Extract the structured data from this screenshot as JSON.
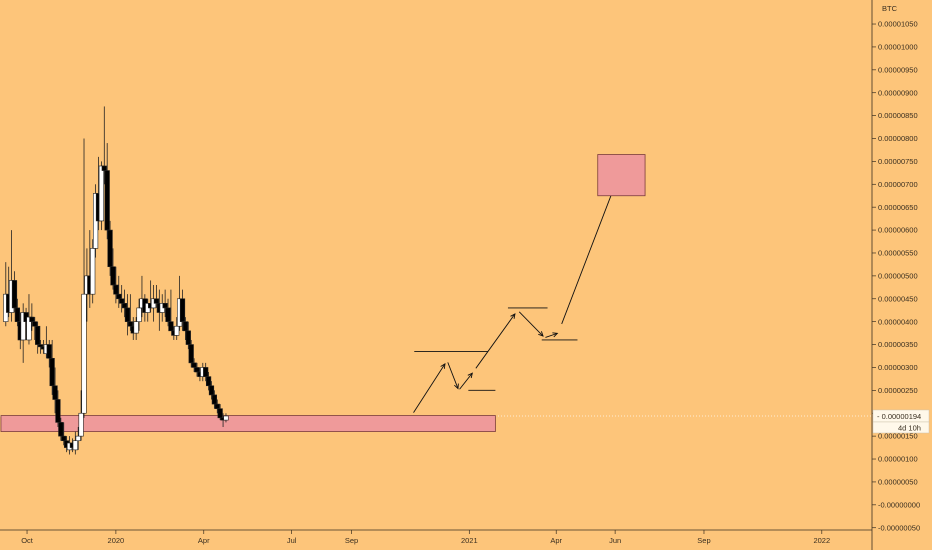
{
  "chart_data": {
    "type": "candlestick",
    "currency_label": "BTC",
    "ylim": [
      -5.5e-07,
      1.085e-05
    ],
    "y_ticks": [
      "0.00001050",
      "0.00001000",
      "0.00000950",
      "0.00000900",
      "0.00000850",
      "0.00000800",
      "0.00000750",
      "0.00000700",
      "0.00000650",
      "0.00000600",
      "0.00000550",
      "0.00000500",
      "0.00000450",
      "0.00000400",
      "0.00000350",
      "0.00000300",
      "0.00000250",
      "0.00000200",
      "0.00000150",
      "0.00000100",
      "0.00000050",
      "-0.00000000",
      "-0.00000050"
    ],
    "x_labels": [
      {
        "label": "Oct",
        "date": "2019-10-01"
      },
      {
        "label": "2020",
        "date": "2020-01-01"
      },
      {
        "label": "Apr",
        "date": "2020-04-01"
      },
      {
        "label": "Jul",
        "date": "2020-07-01"
      },
      {
        "label": "Sep",
        "date": "2020-09-01"
      },
      {
        "label": "2021",
        "date": "2021-01-01"
      },
      {
        "label": "Apr",
        "date": "2021-04-01"
      },
      {
        "label": "Jun",
        "date": "2021-06-01"
      },
      {
        "label": "Sep",
        "date": "2021-09-01"
      },
      {
        "label": "2022",
        "date": "2022-01-01"
      }
    ],
    "xlim": [
      "2019-09-03",
      "2022-02-22"
    ],
    "last_price": {
      "label": "0.00000194",
      "value": 1.94e-06,
      "countdown": "4d 10h"
    },
    "candles": [
      {
        "date": "2019-09-09",
        "o": 4e-06,
        "h": 5.3e-06,
        "l": 3.9e-06,
        "c": 4.6e-06
      },
      {
        "date": "2019-09-12",
        "o": 4.6e-06,
        "h": 5.2e-06,
        "l": 4.1e-06,
        "c": 4.2e-06
      },
      {
        "date": "2019-09-15",
        "o": 4.2e-06,
        "h": 6e-06,
        "l": 4e-06,
        "c": 4.9e-06
      },
      {
        "date": "2019-09-18",
        "o": 4.9e-06,
        "h": 5.1e-06,
        "l": 4.2e-06,
        "c": 4.3e-06
      },
      {
        "date": "2019-09-21",
        "o": 4.3e-06,
        "h": 4.5e-06,
        "l": 3.9e-06,
        "c": 4e-06
      },
      {
        "date": "2019-09-24",
        "o": 4e-06,
        "h": 4.2e-06,
        "l": 3.4e-06,
        "c": 3.6e-06
      },
      {
        "date": "2019-09-27",
        "o": 3.6e-06,
        "h": 4.4e-06,
        "l": 3.1e-06,
        "c": 4.2e-06
      },
      {
        "date": "2019-09-30",
        "o": 4.2e-06,
        "h": 4.3e-06,
        "l": 3.6e-06,
        "c": 4e-06
      },
      {
        "date": "2019-10-03",
        "o": 3.6e-06,
        "h": 4.6e-06,
        "l": 3.5e-06,
        "c": 4.1e-06
      },
      {
        "date": "2019-10-06",
        "o": 4.1e-06,
        "h": 4.4e-06,
        "l": 3.8e-06,
        "c": 4e-06
      },
      {
        "date": "2019-10-09",
        "o": 4e-06,
        "h": 4.1e-06,
        "l": 3.6e-06,
        "c": 3.9e-06
      },
      {
        "date": "2019-10-12",
        "o": 3.9e-06,
        "h": 4e-06,
        "l": 3.3e-06,
        "c": 3.5e-06
      },
      {
        "date": "2019-10-15",
        "o": 3.5e-06,
        "h": 3.6e-06,
        "l": 3.3e-06,
        "c": 3.45e-06
      },
      {
        "date": "2019-10-18",
        "o": 3.45e-06,
        "h": 3.6e-06,
        "l": 3.3e-06,
        "c": 3.4e-06
      },
      {
        "date": "2019-10-21",
        "o": 3.3e-06,
        "h": 3.9e-06,
        "l": 3.2e-06,
        "c": 3.5e-06
      },
      {
        "date": "2019-10-24",
        "o": 3.5e-06,
        "h": 3.6e-06,
        "l": 3e-06,
        "c": 3.2e-06
      },
      {
        "date": "2019-10-27",
        "o": 3.2e-06,
        "h": 3.6e-06,
        "l": 2.4e-06,
        "c": 2.6e-06
      },
      {
        "date": "2019-10-30",
        "o": 2.6e-06,
        "h": 3e-06,
        "l": 2e-06,
        "c": 2.3e-06
      },
      {
        "date": "2019-11-02",
        "o": 2.3e-06,
        "h": 2.5e-06,
        "l": 1.7e-06,
        "c": 1.8e-06
      },
      {
        "date": "2019-11-05",
        "o": 1.8e-06,
        "h": 1.9e-06,
        "l": 1.4e-06,
        "c": 1.5e-06
      },
      {
        "date": "2019-11-08",
        "o": 1.5e-06,
        "h": 1.8e-06,
        "l": 1.3e-06,
        "c": 1.4e-06
      },
      {
        "date": "2019-11-11",
        "o": 1.4e-06,
        "h": 1.5e-06,
        "l": 1.15e-06,
        "c": 1.25e-06
      },
      {
        "date": "2019-11-14",
        "o": 1.2e-06,
        "h": 1.5e-06,
        "l": 1.1e-06,
        "c": 1.35e-06
      },
      {
        "date": "2019-11-17",
        "o": 1.35e-06,
        "h": 1.45e-06,
        "l": 1.15e-06,
        "c": 1.25e-06
      },
      {
        "date": "2019-11-20",
        "o": 1.2e-06,
        "h": 1.6e-06,
        "l": 1.1e-06,
        "c": 1.4e-06
      },
      {
        "date": "2019-11-23",
        "o": 1.4e-06,
        "h": 1.7e-06,
        "l": 1.2e-06,
        "c": 1.5e-06
      },
      {
        "date": "2019-11-26",
        "o": 1.5e-06,
        "h": 2.5e-06,
        "l": 1.4e-06,
        "c": 2e-06
      },
      {
        "date": "2019-11-29",
        "o": 2e-06,
        "h": 8e-06,
        "l": 1.9e-06,
        "c": 4.6e-06
      },
      {
        "date": "2019-12-02",
        "o": 4.6e-06,
        "h": 5.6e-06,
        "l": 4e-06,
        "c": 5e-06
      },
      {
        "date": "2019-12-05",
        "o": 5e-06,
        "h": 6e-06,
        "l": 4.3e-06,
        "c": 4.6e-06
      },
      {
        "date": "2019-12-08",
        "o": 4.6e-06,
        "h": 5.8e-06,
        "l": 4.4e-06,
        "c": 5.6e-06
      },
      {
        "date": "2019-12-11",
        "o": 5.6e-06,
        "h": 7e-06,
        "l": 5.4e-06,
        "c": 6.8e-06
      },
      {
        "date": "2019-12-14",
        "o": 6.8e-06,
        "h": 7.6e-06,
        "l": 6e-06,
        "c": 6.2e-06
      },
      {
        "date": "2019-12-17",
        "o": 6.2e-06,
        "h": 7.5e-06,
        "l": 6e-06,
        "c": 7.4e-06
      },
      {
        "date": "2019-12-20",
        "o": 7.4e-06,
        "h": 8.7e-06,
        "l": 7e-06,
        "c": 7.3e-06
      },
      {
        "date": "2019-12-23",
        "o": 7.3e-06,
        "h": 7.9e-06,
        "l": 5.8e-06,
        "c": 6e-06
      },
      {
        "date": "2019-12-26",
        "o": 6e-06,
        "h": 6.2e-06,
        "l": 5e-06,
        "c": 5.2e-06
      },
      {
        "date": "2019-12-29",
        "o": 5.2e-06,
        "h": 5.6e-06,
        "l": 4.7e-06,
        "c": 4.8e-06
      },
      {
        "date": "2020-01-01",
        "o": 4.8e-06,
        "h": 5.2e-06,
        "l": 4.4e-06,
        "c": 4.6e-06
      },
      {
        "date": "2020-01-04",
        "o": 4.6e-06,
        "h": 5e-06,
        "l": 4.3e-06,
        "c": 4.5e-06
      },
      {
        "date": "2020-01-07",
        "o": 4.5e-06,
        "h": 4.8e-06,
        "l": 4.2e-06,
        "c": 4.4e-06
      },
      {
        "date": "2020-01-10",
        "o": 4.4e-06,
        "h": 4.7e-06,
        "l": 4.1e-06,
        "c": 4.3e-06
      },
      {
        "date": "2020-01-13",
        "o": 4.3e-06,
        "h": 4.6e-06,
        "l": 3.7e-06,
        "c": 4e-06
      },
      {
        "date": "2020-01-16",
        "o": 4e-06,
        "h": 4.6e-06,
        "l": 3.8e-06,
        "c": 3.9e-06
      },
      {
        "date": "2020-01-19",
        "o": 3.9e-06,
        "h": 4.1e-06,
        "l": 3.6e-06,
        "c": 3.75e-06
      },
      {
        "date": "2020-01-22",
        "o": 3.75e-06,
        "h": 4.1e-06,
        "l": 3.6e-06,
        "c": 4e-06
      },
      {
        "date": "2020-01-25",
        "o": 4e-06,
        "h": 4.5e-06,
        "l": 3.8e-06,
        "c": 4.3e-06
      },
      {
        "date": "2020-01-28",
        "o": 4.3e-06,
        "h": 5e-06,
        "l": 4.1e-06,
        "c": 4.5e-06
      },
      {
        "date": "2020-01-31",
        "o": 4.5e-06,
        "h": 4.6e-06,
        "l": 4e-06,
        "c": 4.2e-06
      },
      {
        "date": "2020-02-03",
        "o": 4.2e-06,
        "h": 4.5e-06,
        "l": 4e-06,
        "c": 4.4e-06
      },
      {
        "date": "2020-02-06",
        "o": 4.4e-06,
        "h": 4.9e-06,
        "l": 4.2e-06,
        "c": 4.3e-06
      },
      {
        "date": "2020-02-09",
        "o": 4.3e-06,
        "h": 4.8e-06,
        "l": 4e-06,
        "c": 4.5e-06
      },
      {
        "date": "2020-02-12",
        "o": 4.5e-06,
        "h": 4.8e-06,
        "l": 4.3e-06,
        "c": 4.4e-06
      },
      {
        "date": "2020-02-15",
        "o": 4.4e-06,
        "h": 4.7e-06,
        "l": 3.8e-06,
        "c": 4.2e-06
      },
      {
        "date": "2020-02-18",
        "o": 4.2e-06,
        "h": 4.6e-06,
        "l": 4e-06,
        "c": 4.4e-06
      },
      {
        "date": "2020-02-21",
        "o": 4.4e-06,
        "h": 4.7e-06,
        "l": 4.1e-06,
        "c": 4.3e-06
      },
      {
        "date": "2020-02-24",
        "o": 4.3e-06,
        "h": 4.5e-06,
        "l": 3.9e-06,
        "c": 4e-06
      },
      {
        "date": "2020-02-27",
        "o": 4e-06,
        "h": 4.7e-06,
        "l": 3.8e-06,
        "c": 3.8e-06
      },
      {
        "date": "2020-03-01",
        "o": 3.8e-06,
        "h": 3.9e-06,
        "l": 3.6e-06,
        "c": 3.7e-06
      },
      {
        "date": "2020-03-04",
        "o": 3.7e-06,
        "h": 4.1e-06,
        "l": 3.6e-06,
        "c": 3.9e-06
      },
      {
        "date": "2020-03-07",
        "o": 3.9e-06,
        "h": 5e-06,
        "l": 3.8e-06,
        "c": 4.5e-06
      },
      {
        "date": "2020-03-10",
        "o": 4.5e-06,
        "h": 4.7e-06,
        "l": 3.8e-06,
        "c": 4e-06
      },
      {
        "date": "2020-03-13",
        "o": 4e-06,
        "h": 4.1e-06,
        "l": 3.6e-06,
        "c": 3.8e-06
      },
      {
        "date": "2020-03-16",
        "o": 3.8e-06,
        "h": 4e-06,
        "l": 3.4e-06,
        "c": 3.5e-06
      },
      {
        "date": "2020-03-19",
        "o": 3.5e-06,
        "h": 3.6e-06,
        "l": 3e-06,
        "c": 3.1e-06
      },
      {
        "date": "2020-03-22",
        "o": 3.1e-06,
        "h": 3.2e-06,
        "l": 2.9e-06,
        "c": 3e-06
      },
      {
        "date": "2020-03-25",
        "o": 3e-06,
        "h": 3.1e-06,
        "l": 2.8e-06,
        "c": 2.9e-06
      },
      {
        "date": "2020-03-28",
        "o": 2.9e-06,
        "h": 3e-06,
        "l": 2.7e-06,
        "c": 2.8e-06
      },
      {
        "date": "2020-03-31",
        "o": 2.8e-06,
        "h": 3.1e-06,
        "l": 2.7e-06,
        "c": 3e-06
      },
      {
        "date": "2020-04-03",
        "o": 3e-06,
        "h": 3.1e-06,
        "l": 2.7e-06,
        "c": 2.8e-06
      },
      {
        "date": "2020-04-06",
        "o": 2.8e-06,
        "h": 2.9e-06,
        "l": 2.5e-06,
        "c": 2.6e-06
      },
      {
        "date": "2020-04-09",
        "o": 2.6e-06,
        "h": 2.7e-06,
        "l": 2.3e-06,
        "c": 2.4e-06
      },
      {
        "date": "2020-04-12",
        "o": 2.4e-06,
        "h": 2.5e-06,
        "l": 2.1e-06,
        "c": 2.2e-06
      },
      {
        "date": "2020-04-15",
        "o": 2.2e-06,
        "h": 2.3e-06,
        "l": 2e-06,
        "c": 2.1e-06
      },
      {
        "date": "2020-04-18",
        "o": 2.1e-06,
        "h": 2.2e-06,
        "l": 1.85e-06,
        "c": 1.9e-06
      },
      {
        "date": "2020-04-21",
        "o": 1.9e-06,
        "h": 2e-06,
        "l": 1.7e-06,
        "c": 1.85e-06
      },
      {
        "date": "2020-04-24",
        "o": 1.85e-06,
        "h": 2e-06,
        "l": 1.8e-06,
        "c": 1.94e-06
      }
    ]
  },
  "annotations": {
    "support_zone": {
      "y_low": 1.6e-06,
      "y_high": 1.95e-06,
      "x_start": "2019-09-04",
      "x_end": "2021-01-28",
      "color": "#ef9a9a"
    },
    "target_box": {
      "y_low": 6.75e-06,
      "y_high": 7.65e-06,
      "x_start": "2021-05-14",
      "x_end": "2021-07-02",
      "color": "#ef9a9a"
    },
    "levels": [
      {
        "y": 3.35e-06,
        "x_start": "2020-11-05",
        "x_end": "2021-01-20"
      },
      {
        "y": 2.5e-06,
        "x_start": "2020-12-31",
        "x_end": "2021-01-28"
      },
      {
        "y": 4.3e-06,
        "x_start": "2021-02-10",
        "x_end": "2021-03-23"
      },
      {
        "y": 3.6e-06,
        "x_start": "2021-03-17",
        "x_end": "2021-04-23"
      }
    ],
    "path_points": [
      [
        "2020-11-02",
        1.94e-06
      ],
      [
        "2020-12-09",
        3.15e-06
      ],
      [
        "2020-12-21",
        2.5e-06
      ],
      [
        "2021-01-05",
        2.9e-06
      ],
      [
        "2021-02-20",
        4.25e-06
      ],
      [
        "2021-03-20",
        3.65e-06
      ],
      [
        "2021-04-03",
        3.75e-06
      ],
      [
        "2021-06-03",
        7.1e-06
      ]
    ],
    "colors": {
      "background": "#fdc57a",
      "bull": "#ffffff",
      "bear": "#000000",
      "wick": "#222222",
      "zone": "#ef9a9a",
      "zone_border": "#7a3c3c",
      "axis": "#3a2f20"
    }
  }
}
